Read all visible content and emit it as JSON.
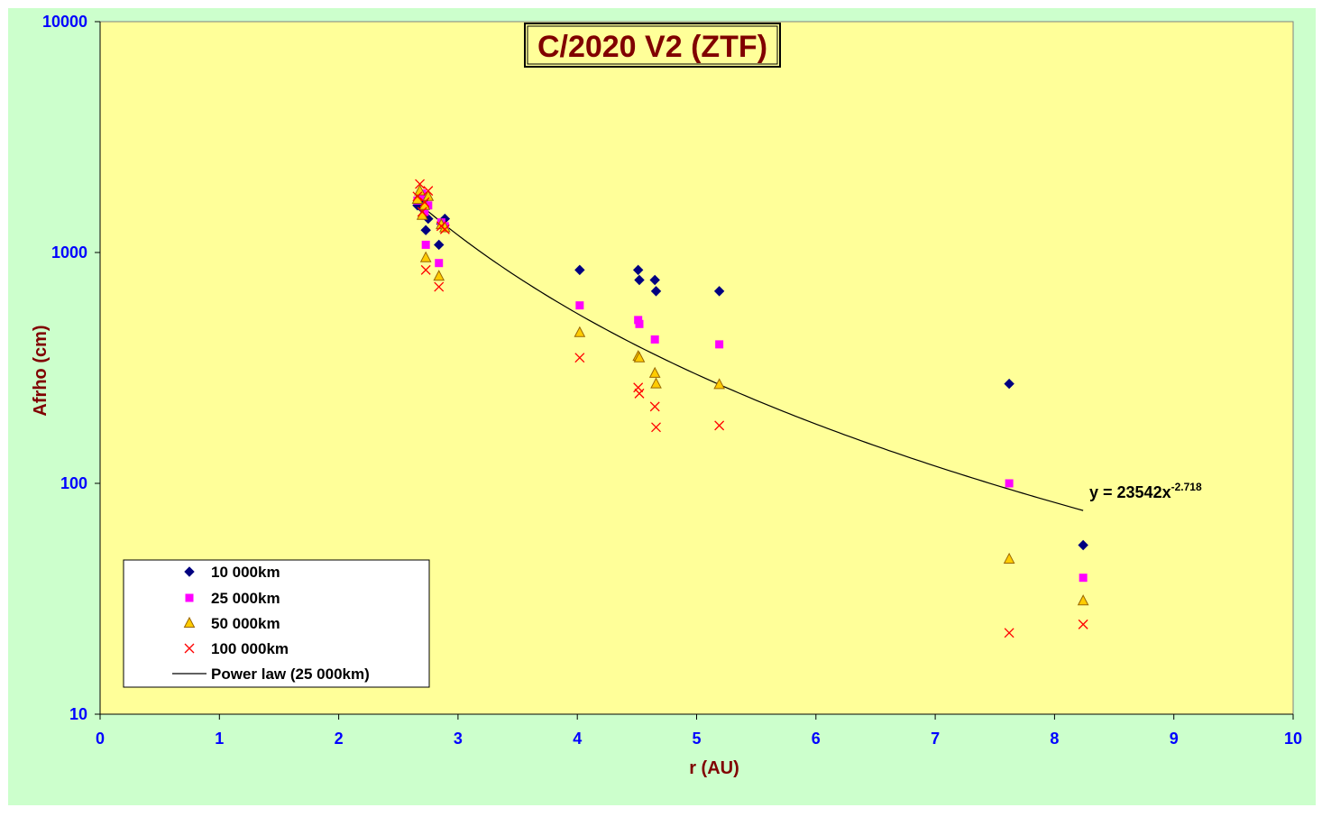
{
  "chart_data": {
    "type": "scatter",
    "title": "C/2020 V2 (ZTF)",
    "xlabel": "r (AU)",
    "ylabel": "Afrho (cm)",
    "xlim": [
      0,
      10
    ],
    "ylim": [
      10,
      10000
    ],
    "yscale": "log",
    "x_ticks": [
      "0",
      "1",
      "2",
      "3",
      "4",
      "5",
      "6",
      "7",
      "8",
      "9",
      "10"
    ],
    "y_ticks": [
      "10",
      "100",
      "1000",
      "10000"
    ],
    "legend_position": "bottom-left",
    "background": {
      "plot": "#ffff99",
      "outer": "#ccffcc"
    },
    "series": [
      {
        "name": "10 000km",
        "marker": "diamond",
        "color": "#000080",
        "points": [
          [
            2.66,
            1600
          ],
          [
            2.68,
            1650
          ],
          [
            2.7,
            1550
          ],
          [
            2.72,
            1700
          ],
          [
            2.73,
            1250
          ],
          [
            2.75,
            1400
          ],
          [
            2.84,
            1080
          ],
          [
            2.86,
            1330
          ],
          [
            2.89,
            1400
          ],
          [
            4.02,
            840
          ],
          [
            4.51,
            840
          ],
          [
            4.52,
            760
          ],
          [
            4.65,
            760
          ],
          [
            4.66,
            680
          ],
          [
            5.19,
            680
          ],
          [
            7.62,
            270
          ],
          [
            8.24,
            54
          ]
        ]
      },
      {
        "name": "25 000km",
        "marker": "square",
        "color": "#ff00ff",
        "points": [
          [
            2.66,
            1680
          ],
          [
            2.68,
            1750
          ],
          [
            2.7,
            1800
          ],
          [
            2.72,
            1500
          ],
          [
            2.73,
            1080
          ],
          [
            2.75,
            1600
          ],
          [
            2.84,
            900
          ],
          [
            2.86,
            1350
          ],
          [
            2.89,
            1300
          ],
          [
            4.02,
            590
          ],
          [
            4.51,
            510
          ],
          [
            4.52,
            490
          ],
          [
            4.65,
            420
          ],
          [
            5.19,
            400
          ],
          [
            7.62,
            100
          ],
          [
            8.24,
            39
          ]
        ]
      },
      {
        "name": "50 000km",
        "marker": "triangle",
        "color": "#ffcc00",
        "points": [
          [
            2.66,
            1700
          ],
          [
            2.68,
            1850
          ],
          [
            2.7,
            1450
          ],
          [
            2.72,
            1600
          ],
          [
            2.73,
            950
          ],
          [
            2.75,
            1750
          ],
          [
            2.84,
            790
          ],
          [
            2.86,
            1320
          ],
          [
            2.89,
            1280
          ],
          [
            4.02,
            450
          ],
          [
            4.51,
            355
          ],
          [
            4.52,
            350
          ],
          [
            4.65,
            300
          ],
          [
            4.66,
            270
          ],
          [
            5.19,
            268
          ],
          [
            7.62,
            47
          ],
          [
            8.24,
            31
          ]
        ]
      },
      {
        "name": "100 000km",
        "marker": "x",
        "color": "#ff0000",
        "points": [
          [
            2.66,
            1750
          ],
          [
            2.68,
            1980
          ],
          [
            2.7,
            1500
          ],
          [
            2.72,
            1650
          ],
          [
            2.73,
            840
          ],
          [
            2.75,
            1850
          ],
          [
            2.84,
            710
          ],
          [
            2.86,
            1300
          ],
          [
            2.89,
            1260
          ],
          [
            4.02,
            350
          ],
          [
            4.51,
            260
          ],
          [
            4.52,
            245
          ],
          [
            4.65,
            215
          ],
          [
            4.66,
            175
          ],
          [
            5.19,
            178
          ],
          [
            7.62,
            22.5
          ],
          [
            8.24,
            24.5
          ]
        ]
      }
    ],
    "trendline": {
      "name": "Power law (25 000km)",
      "coefficient": 23542,
      "exponent": -2.718,
      "x_range": [
        2.66,
        8.24
      ],
      "color": "#000000",
      "equation_label": "y = 23542x",
      "equation_exponent": "-2.718"
    }
  }
}
